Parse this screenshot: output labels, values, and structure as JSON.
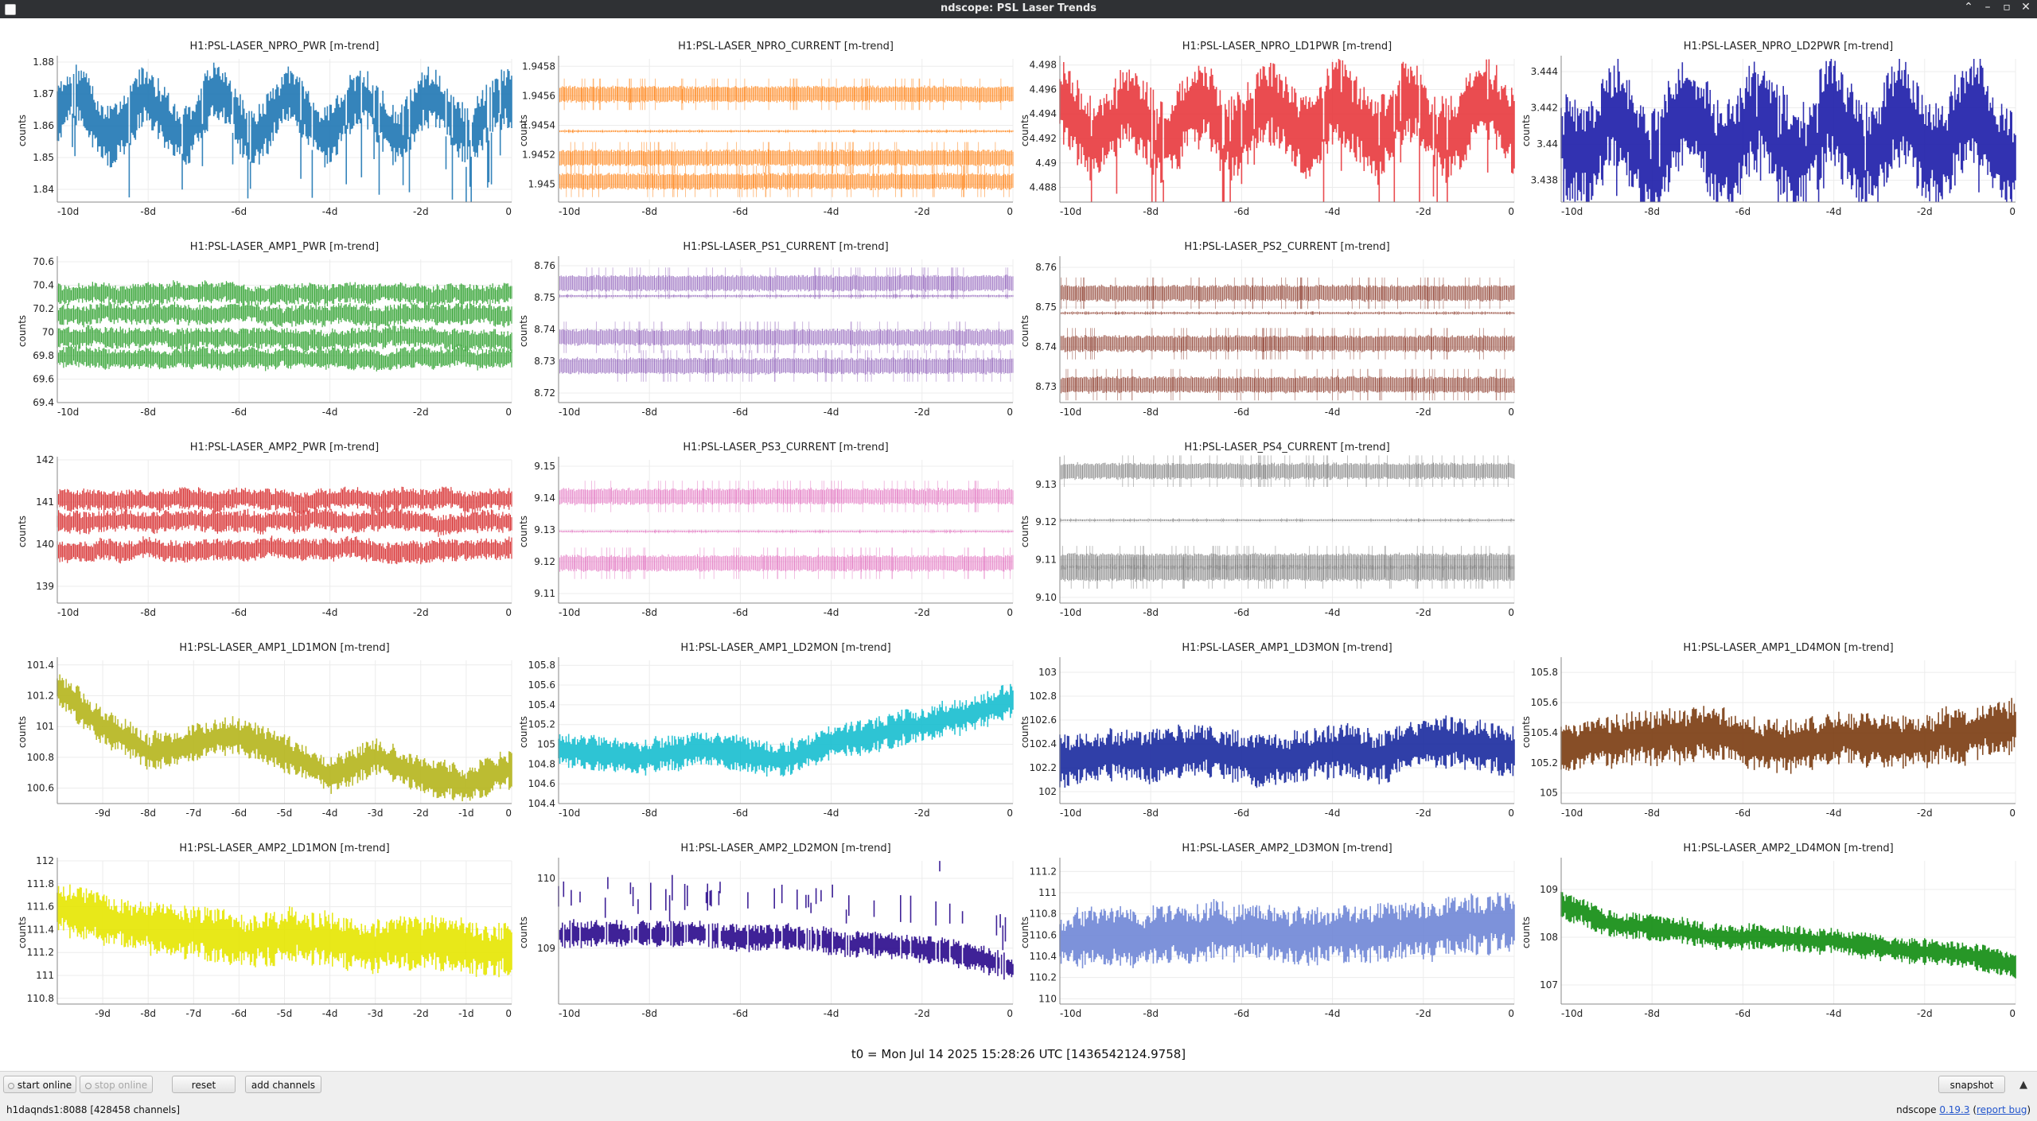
{
  "window": {
    "title": "ndscope: PSL Laser Trends",
    "icon": "app-window-icon",
    "controls": [
      "chevron-up-icon",
      "minimize-icon",
      "maximize-icon",
      "close-icon"
    ]
  },
  "plots": [
    {
      "name": "npro-pwr",
      "title": "H1:PSL-LASER_NPRO_PWR [m-trend]",
      "ylabel": "counts",
      "color": "#1f77b4",
      "yticks": [
        "1.88",
        "1.87",
        "1.86",
        "1.85",
        "1.84"
      ],
      "ylim": [
        1.836,
        1.881
      ],
      "xticks": [
        "-10d",
        "-8d",
        "-6d",
        "-4d",
        "-2d",
        "0"
      ],
      "xlim": [
        -10,
        0
      ],
      "style": "band",
      "base": 1.863,
      "amp": 0.006,
      "noise": 0.007,
      "dips": 0.014
    },
    {
      "name": "npro-current",
      "title": "H1:PSL-LASER_NPRO_CURRENT [m-trend]",
      "ylabel": "counts",
      "color": "#ff7f0e",
      "yticks": [
        "1.9458",
        "1.9456",
        "1.9454",
        "1.9452",
        "1.945"
      ],
      "ylim": [
        1.94488,
        1.94585
      ],
      "xticks": [
        "-10d",
        "-8d",
        "-6d",
        "-4d",
        "-2d",
        "0"
      ],
      "xlim": [
        -10,
        0
      ],
      "style": "bands",
      "levels": [
        1.94561,
        1.94536,
        1.94518,
        1.94502
      ]
    },
    {
      "name": "npro-ld1pwr",
      "title": "H1:PSL-LASER_NPRO_LD1PWR [m-trend]",
      "ylabel": "counts",
      "color": "#e8383d",
      "yticks": [
        "4.498",
        "4.496",
        "4.494",
        "4.492",
        "4.49",
        "4.488"
      ],
      "ylim": [
        4.4868,
        4.4985
      ],
      "xticks": [
        "-10d",
        "-8d",
        "-6d",
        "-4d",
        "-2d",
        "0"
      ],
      "xlim": [
        -10,
        0
      ],
      "style": "band",
      "base": 4.4935,
      "amp": 0.0015,
      "noise": 0.0025,
      "dips": 0.004
    },
    {
      "name": "npro-ld2pwr",
      "title": "H1:PSL-LASER_NPRO_LD2PWR [m-trend]",
      "ylabel": "counts",
      "color": "#1c1ca8",
      "yticks": [
        "3.444",
        "3.442",
        "3.44",
        "3.438"
      ],
      "ylim": [
        3.4368,
        3.4447
      ],
      "xticks": [
        "-10d",
        "-8d",
        "-6d",
        "-4d",
        "-2d",
        "0"
      ],
      "xlim": [
        -10,
        0
      ],
      "style": "band",
      "base": 3.4405,
      "amp": 0.0012,
      "noise": 0.0022,
      "dips": 0.002
    },
    {
      "name": "amp1-pwr",
      "title": "H1:PSL-LASER_AMP1_PWR [m-trend]",
      "ylabel": "counts",
      "color": "#2ca02c",
      "yticks": [
        "70.6",
        "70.4",
        "70.2",
        "70",
        "69.8",
        "69.6",
        "69.4"
      ],
      "ylim": [
        69.4,
        70.62
      ],
      "xticks": [
        "-10d",
        "-8d",
        "-6d",
        "-4d",
        "-2d",
        "0"
      ],
      "xlim": [
        -10,
        0
      ],
      "style": "multi",
      "levels": [
        70.33,
        70.15,
        69.95,
        69.78
      ],
      "noise": 0.12
    },
    {
      "name": "ps1-current",
      "title": "H1:PSL-LASER_PS1_CURRENT [m-trend]",
      "ylabel": "counts",
      "color": "#9467bd",
      "yticks": [
        "8.76",
        "8.75",
        "8.74",
        "8.73",
        "8.72"
      ],
      "ylim": [
        8.717,
        8.762
      ],
      "xticks": [
        "-10d",
        "-8d",
        "-6d",
        "-4d",
        "-2d",
        "0"
      ],
      "xlim": [
        -10,
        0
      ],
      "style": "bands",
      "levels": [
        8.7545,
        8.7505,
        8.7375,
        8.7285
      ]
    },
    {
      "name": "ps2-current",
      "title": "H1:PSL-LASER_PS2_CURRENT [m-trend]",
      "ylabel": "counts",
      "color": "#8c3b2c",
      "yticks": [
        "8.76",
        "8.75",
        "8.74",
        "8.73"
      ],
      "ylim": [
        8.726,
        8.762
      ],
      "xticks": [
        "-10d",
        "-8d",
        "-6d",
        "-4d",
        "-2d",
        "0"
      ],
      "xlim": [
        -10,
        0
      ],
      "style": "bands",
      "levels": [
        8.7535,
        8.7485,
        8.7408,
        8.7305
      ]
    },
    {
      "name": "amp2-pwr",
      "title": "H1:PSL-LASER_AMP2_PWR [m-trend]",
      "ylabel": "counts",
      "color": "#d62728",
      "yticks": [
        "142",
        "141",
        "140",
        "139"
      ],
      "ylim": [
        138.6,
        142.0
      ],
      "xticks": [
        "-10d",
        "-8d",
        "-6d",
        "-4d",
        "-2d",
        "0"
      ],
      "xlim": [
        -10,
        0
      ],
      "style": "multi",
      "levels": [
        141.05,
        140.55,
        139.85
      ],
      "noise": 0.35
    },
    {
      "name": "ps3-current",
      "title": "H1:PSL-LASER_PS3_CURRENT [m-trend]",
      "ylabel": "counts",
      "color": "#e377c2",
      "yticks": [
        "9.15",
        "9.14",
        "9.13",
        "9.12",
        "9.11"
      ],
      "ylim": [
        9.107,
        9.152
      ],
      "xticks": [
        "-10d",
        "-8d",
        "-6d",
        "-4d",
        "-2d",
        "0"
      ],
      "xlim": [
        -10,
        0
      ],
      "style": "bands",
      "levels": [
        9.1405,
        9.1295,
        9.1195
      ]
    },
    {
      "name": "ps4-current",
      "title": "H1:PSL-LASER_PS4_CURRENT [m-trend]",
      "ylabel": "counts",
      "color": "#7f7f7f",
      "yticks": [
        "9.13",
        "9.12",
        "9.11",
        "9.10"
      ],
      "ylim": [
        9.0985,
        9.1365
      ],
      "xticks": [
        "-10d",
        "-8d",
        "-6d",
        "-4d",
        "-2d",
        "0"
      ],
      "xlim": [
        -10,
        0
      ],
      "style": "bands",
      "levels": [
        9.1335,
        9.1205,
        9.1095,
        9.1065
      ]
    },
    {
      "name": "amp1-ld1mon",
      "title": "H1:PSL-LASER_AMP1_LD1MON [m-trend]",
      "ylabel": "counts",
      "color": "#b5b51c",
      "yticks": [
        "101.4",
        "101.2",
        "101",
        "100.8",
        "100.6"
      ],
      "ylim": [
        100.5,
        101.43
      ],
      "xticks": [
        "-9d",
        "-8d",
        "-7d",
        "-6d",
        "-5d",
        "-4d",
        "-3d",
        "-2d",
        "-1d",
        "0"
      ],
      "xlim": [
        -10,
        0
      ],
      "style": "band",
      "trend": [
        101.25,
        101.0,
        100.84,
        100.88,
        100.95,
        100.82,
        100.7,
        100.8,
        100.7,
        100.62,
        100.74
      ],
      "noise": 0.09
    },
    {
      "name": "amp1-ld2mon",
      "title": "H1:PSL-LASER_AMP1_LD2MON [m-trend]",
      "ylabel": "counts",
      "color": "#17becf",
      "yticks": [
        "105.8",
        "105.6",
        "105.4",
        "105.2",
        "105",
        "104.8",
        "104.6",
        "104.4"
      ],
      "ylim": [
        104.4,
        105.85
      ],
      "xticks": [
        "-10d",
        "-8d",
        "-6d",
        "-4d",
        "-2d",
        "0"
      ],
      "xlim": [
        -10,
        0
      ],
      "style": "band",
      "trend": [
        104.95,
        104.9,
        104.85,
        104.95,
        104.9,
        104.85,
        105.0,
        105.1,
        105.2,
        105.3,
        105.45
      ],
      "noise": 0.13
    },
    {
      "name": "amp1-ld3mon",
      "title": "H1:PSL-LASER_AMP1_LD3MON [m-trend]",
      "ylabel": "counts",
      "color": "#1a2a9e",
      "yticks": [
        "103",
        "102.8",
        "102.6",
        "102.4",
        "102.2",
        "102"
      ],
      "ylim": [
        101.9,
        103.1
      ],
      "xticks": [
        "-10d",
        "-8d",
        "-6d",
        "-4d",
        "-2d",
        "0"
      ],
      "xlim": [
        -10,
        0
      ],
      "style": "band",
      "trend": [
        102.25,
        102.3,
        102.3,
        102.35,
        102.3,
        102.25,
        102.35,
        102.3,
        102.4,
        102.4,
        102.35
      ],
      "noise": 0.16
    },
    {
      "name": "amp1-ld4mon",
      "title": "H1:PSL-LASER_AMP1_LD4MON [m-trend]",
      "ylabel": "counts",
      "color": "#7a3b10",
      "yticks": [
        "105.8",
        "105.6",
        "105.4",
        "105.2",
        "105"
      ],
      "ylim": [
        104.93,
        105.88
      ],
      "xticks": [
        "-10d",
        "-8d",
        "-6d",
        "-4d",
        "-2d",
        "0"
      ],
      "xlim": [
        -10,
        0
      ],
      "style": "band",
      "trend": [
        105.3,
        105.35,
        105.35,
        105.4,
        105.35,
        105.3,
        105.35,
        105.35,
        105.35,
        105.4,
        105.45
      ],
      "noise": 0.13
    },
    {
      "name": "amp2-ld1mon",
      "title": "H1:PSL-LASER_AMP2_LD1MON [m-trend]",
      "ylabel": "counts",
      "color": "#e6e600",
      "yticks": [
        "112",
        "111.8",
        "111.6",
        "111.4",
        "111.2",
        "111",
        "110.8"
      ],
      "ylim": [
        110.75,
        112.0
      ],
      "xticks": [
        "-9d",
        "-8d",
        "-7d",
        "-6d",
        "-5d",
        "-4d",
        "-3d",
        "-2d",
        "-1d",
        "0"
      ],
      "xlim": [
        -10,
        0
      ],
      "style": "band",
      "trend": [
        111.6,
        111.5,
        111.4,
        111.4,
        111.3,
        111.35,
        111.3,
        111.25,
        111.3,
        111.25,
        111.2
      ],
      "noise": 0.17
    },
    {
      "name": "amp2-ld2mon",
      "title": "H1:PSL-LASER_AMP2_LD2MON [m-trend]",
      "ylabel": "counts",
      "color": "#2a0a8c",
      "yticks": [
        "110",
        "109"
      ],
      "ylim": [
        108.2,
        110.25
      ],
      "xticks": [
        "-10d",
        "-8d",
        "-6d",
        "-4d",
        "-2d",
        "0"
      ],
      "xlim": [
        -10,
        0
      ],
      "style": "band",
      "trend": [
        109.2,
        109.2,
        109.2,
        109.2,
        109.15,
        109.15,
        109.1,
        109.05,
        109.0,
        108.9,
        108.7
      ],
      "noise": 0.14,
      "dips": -0.6
    },
    {
      "name": "amp2-ld3mon",
      "title": "H1:PSL-LASER_AMP2_LD3MON [m-trend]",
      "ylabel": "counts",
      "color": "#6f86d6",
      "yticks": [
        "111.2",
        "111",
        "110.8",
        "110.6",
        "110.4",
        "110.2",
        "110"
      ],
      "ylim": [
        109.95,
        111.3
      ],
      "xticks": [
        "-10d",
        "-8d",
        "-6d",
        "-4d",
        "-2d",
        "0"
      ],
      "xlim": [
        -10,
        0
      ],
      "style": "band",
      "trend": [
        110.55,
        110.6,
        110.6,
        110.6,
        110.65,
        110.6,
        110.6,
        110.65,
        110.65,
        110.7,
        110.75
      ],
      "noise": 0.2
    },
    {
      "name": "amp2-ld4mon",
      "title": "H1:PSL-LASER_AMP2_LD4MON [m-trend]",
      "ylabel": "counts",
      "color": "#0f8c0f",
      "yticks": [
        "109",
        "108",
        "107"
      ],
      "ylim": [
        106.6,
        109.6
      ],
      "xticks": [
        "-10d",
        "-8d",
        "-6d",
        "-4d",
        "-2d",
        "0"
      ],
      "xlim": [
        -10,
        0
      ],
      "style": "band",
      "trend": [
        108.7,
        108.3,
        108.2,
        108.1,
        108.0,
        108.0,
        107.9,
        107.8,
        107.7,
        107.6,
        107.4
      ],
      "noise": 0.2
    }
  ],
  "footer": {
    "t0": "t0 = Mon Jul 14 2025 15:28:26 UTC [1436542124.9758]"
  },
  "toolbar": {
    "start_online": "start online",
    "stop_online": "stop online",
    "reset": "reset",
    "add_channels": "add channels",
    "snapshot": "snapshot",
    "arrow": "▲"
  },
  "status": {
    "left": "h1daqnds1:8088  [428458 channels]",
    "version_prefix": "ndscope ",
    "version": "0.19.3",
    "report_bug": "report bug"
  }
}
